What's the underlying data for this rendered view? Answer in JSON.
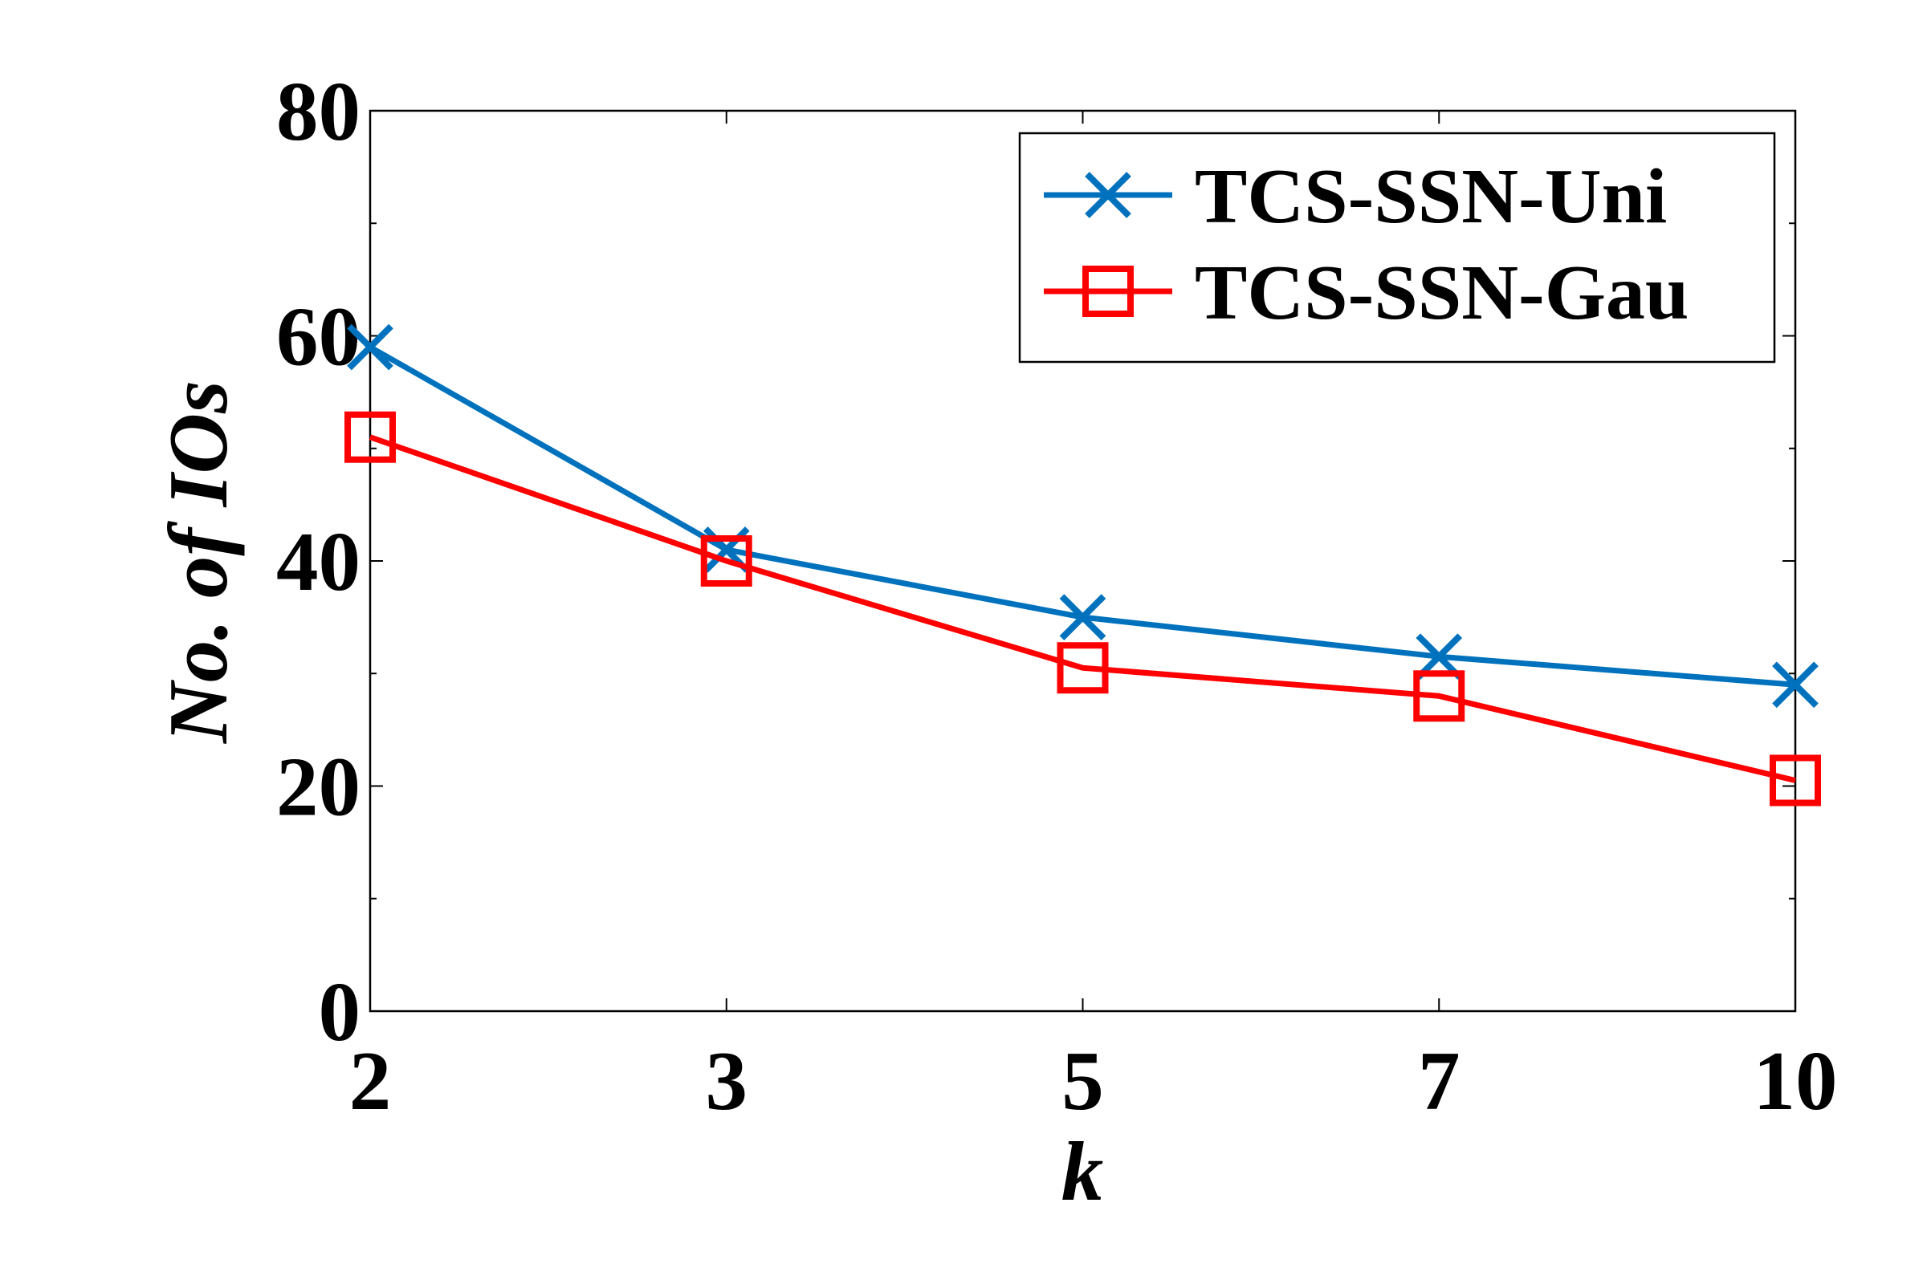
{
  "chart_data": {
    "type": "line",
    "categories": [
      "2",
      "3",
      "5",
      "7",
      "10"
    ],
    "xlabel": "k",
    "ylabel": "No. of IOs",
    "ylim": [
      0,
      80
    ],
    "yticks": [
      "0",
      "20",
      "40",
      "60",
      "80"
    ],
    "grid": false,
    "legend_position": "top-right",
    "series": [
      {
        "name": "TCS-SSN-Uni",
        "values": [
          59,
          41,
          35,
          31.5,
          29
        ],
        "color": "#0072BD",
        "marker": "x"
      },
      {
        "name": "TCS-SSN-Gau",
        "values": [
          51,
          40,
          30.5,
          28,
          20.5
        ],
        "color": "#FF0000",
        "marker": "square"
      }
    ]
  }
}
